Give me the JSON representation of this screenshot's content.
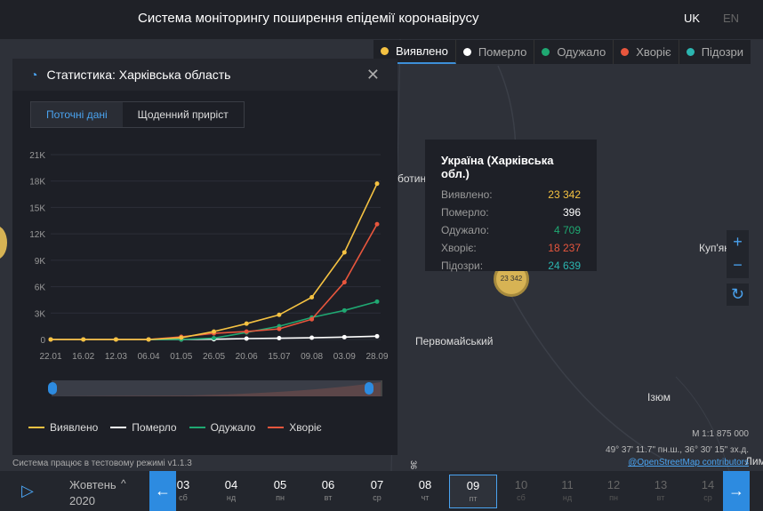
{
  "header": {
    "title": "Система моніторингу поширення епідемії коронавірусу",
    "lang_uk": "UK",
    "lang_en": "EN"
  },
  "layers": [
    {
      "label": "Виявлено",
      "color": "#f5c242",
      "active": true
    },
    {
      "label": "Померло",
      "color": "#ffffff"
    },
    {
      "label": "Одужало",
      "color": "#1fa872"
    },
    {
      "label": "Хворіє",
      "color": "#e8563d"
    },
    {
      "label": "Підозри",
      "color": "#2bb5b0"
    }
  ],
  "panel": {
    "title": "Статистика: Харківська область",
    "tabs": [
      "Поточні дані",
      "Щоденний приріст"
    ]
  },
  "chart_data": {
    "type": "line",
    "x": [
      "22.01",
      "16.02",
      "12.03",
      "06.04",
      "01.05",
      "26.05",
      "20.06",
      "15.07",
      "09.08",
      "03.09",
      "28.09"
    ],
    "yticks": [
      "0",
      "3K",
      "6K",
      "9K",
      "12K",
      "15K",
      "18K",
      "21K"
    ],
    "ylim": [
      0,
      21000
    ],
    "grid": true,
    "series": [
      {
        "name": "Виявлено",
        "color": "#f5c242",
        "values": [
          0,
          0,
          0,
          0,
          200,
          900,
          1800,
          2800,
          4800,
          9900,
          17700
        ]
      },
      {
        "name": "Помер­ло",
        "color": "#ffffff",
        "values": [
          0,
          0,
          0,
          0,
          0,
          30,
          100,
          150,
          200,
          270,
          370
        ]
      },
      {
        "name": "Одужало",
        "color": "#1fa872",
        "values": [
          0,
          0,
          0,
          0,
          0,
          150,
          800,
          1500,
          2500,
          3300,
          4300
        ]
      },
      {
        "name": "Хворіє",
        "color": "#e8563d",
        "values": [
          0,
          0,
          0,
          0,
          300,
          700,
          900,
          1200,
          2300,
          6500,
          13100
        ]
      }
    ],
    "legend": [
      "Виявлено",
      "Померло",
      "Одужало",
      "Хворіє"
    ]
  },
  "tooltip": {
    "title": "Україна (Харківська обл.)",
    "rows": [
      {
        "label": "Виявлено:",
        "value": "23 342",
        "color": "#f5c242"
      },
      {
        "label": "Померло:",
        "value": "396",
        "color": "#ffffff"
      },
      {
        "label": "Одужало:",
        "value": "4 709",
        "color": "#1fa872"
      },
      {
        "label": "Хворіє:",
        "value": "18 237",
        "color": "#e8563d"
      },
      {
        "label": "Підозри:",
        "value": "24 639",
        "color": "#2bb5b0"
      }
    ]
  },
  "map": {
    "marker": "23 342",
    "labels": [
      "ботин",
      "Первомайський",
      "Куп'ян",
      "Ізюм",
      "Лим",
      "36"
    ],
    "scale": "M 1:1 875 000",
    "coords": "49° 37' 11.7\" пн.ш., 36° 30' 15\" зх.д.",
    "attribution": "@OpenStreetMap contributors"
  },
  "status": "Система працює в тестовому режимі v1.1.3",
  "timeline": {
    "month": "Жовтень",
    "year": "2020",
    "days": [
      {
        "n": "03",
        "w": "сб"
      },
      {
        "n": "04",
        "w": "нд"
      },
      {
        "n": "05",
        "w": "пн"
      },
      {
        "n": "06",
        "w": "вт"
      },
      {
        "n": "07",
        "w": "ср"
      },
      {
        "n": "08",
        "w": "чт"
      },
      {
        "n": "09",
        "w": "пт"
      },
      {
        "n": "10",
        "w": "сб"
      },
      {
        "n": "11",
        "w": "нд"
      },
      {
        "n": "12",
        "w": "пн"
      },
      {
        "n": "13",
        "w": "вт"
      },
      {
        "n": "14",
        "w": "ср"
      }
    ],
    "selected": "09"
  }
}
